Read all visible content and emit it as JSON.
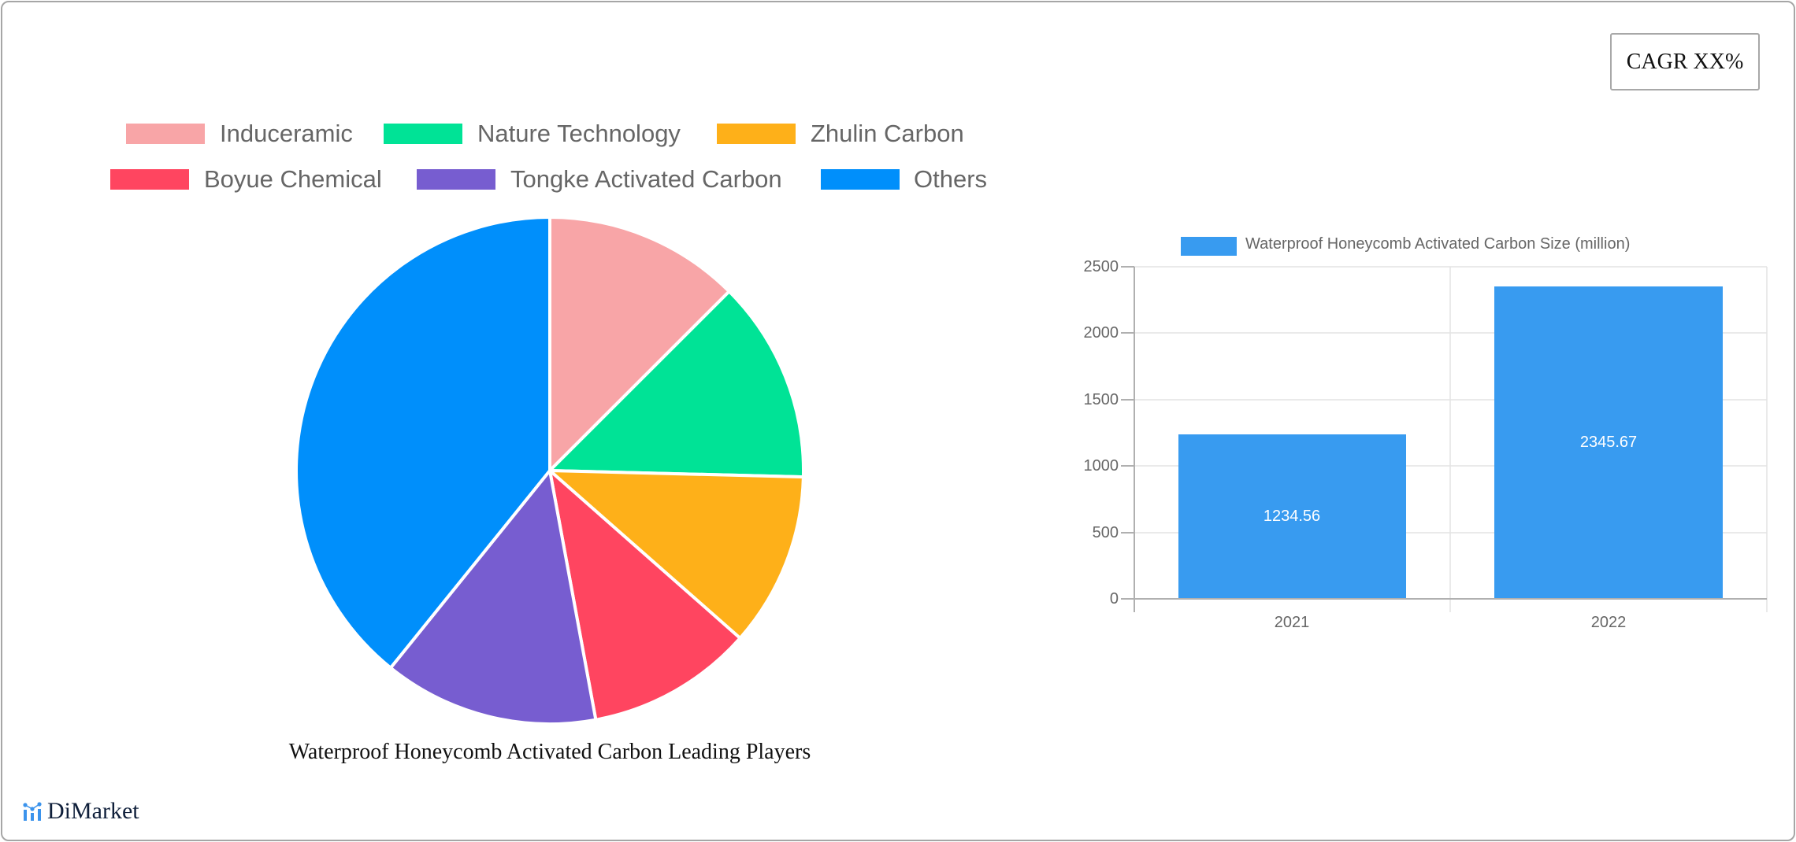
{
  "cagr_badge": {
    "label": "CAGR XX%"
  },
  "pie": {
    "title": "Waterproof Honeycomb Activated Carbon Leading Players",
    "legend": [
      {
        "label": "Induceramic",
        "color": "#F8A5A7"
      },
      {
        "label": "Nature Technology",
        "color": "#00E396"
      },
      {
        "label": "Zhulin Carbon",
        "color": "#FEB019"
      },
      {
        "label": "Boyue Chemical",
        "color": "#FF4560"
      },
      {
        "label": "Tongke Activated Carbon",
        "color": "#775DD0"
      },
      {
        "label": "Others",
        "color": "#008FFB"
      }
    ]
  },
  "bar": {
    "legend_label": "Waterproof Honeycomb Activated Carbon Size (million)",
    "color": "#389BF0",
    "y_ticks": [
      "2500",
      "2000",
      "1500",
      "1000",
      "500",
      "0"
    ],
    "x_ticks": [
      "2021",
      "2022"
    ],
    "value_labels": [
      "1234.56",
      "2345.67"
    ]
  },
  "logo": {
    "text": "DiMarket"
  },
  "chart_data": [
    {
      "type": "pie",
      "title": "Waterproof Honeycomb Activated Carbon Leading Players",
      "categories": [
        "Induceramic",
        "Nature Technology",
        "Zhulin Carbon",
        "Boyue Chemical",
        "Tongke Activated Carbon",
        "Others"
      ],
      "values": [
        12.5,
        12.9,
        11.1,
        10.6,
        13.7,
        39.2
      ],
      "colors": [
        "#F8A5A7",
        "#00E396",
        "#FEB019",
        "#FF4560",
        "#775DD0",
        "#008FFB"
      ],
      "legend_position": "top"
    },
    {
      "type": "bar",
      "title": "",
      "categories": [
        "2021",
        "2022"
      ],
      "series": [
        {
          "name": "Waterproof Honeycomb Activated Carbon Size (million)",
          "values": [
            1234.56,
            2345.67
          ]
        }
      ],
      "xlabel": "",
      "ylabel": "",
      "ylim": [
        0,
        2500
      ],
      "y_ticks": [
        0,
        500,
        1000,
        1500,
        2000,
        2500
      ],
      "grid": true,
      "legend_position": "top",
      "data_labels": true
    }
  ]
}
